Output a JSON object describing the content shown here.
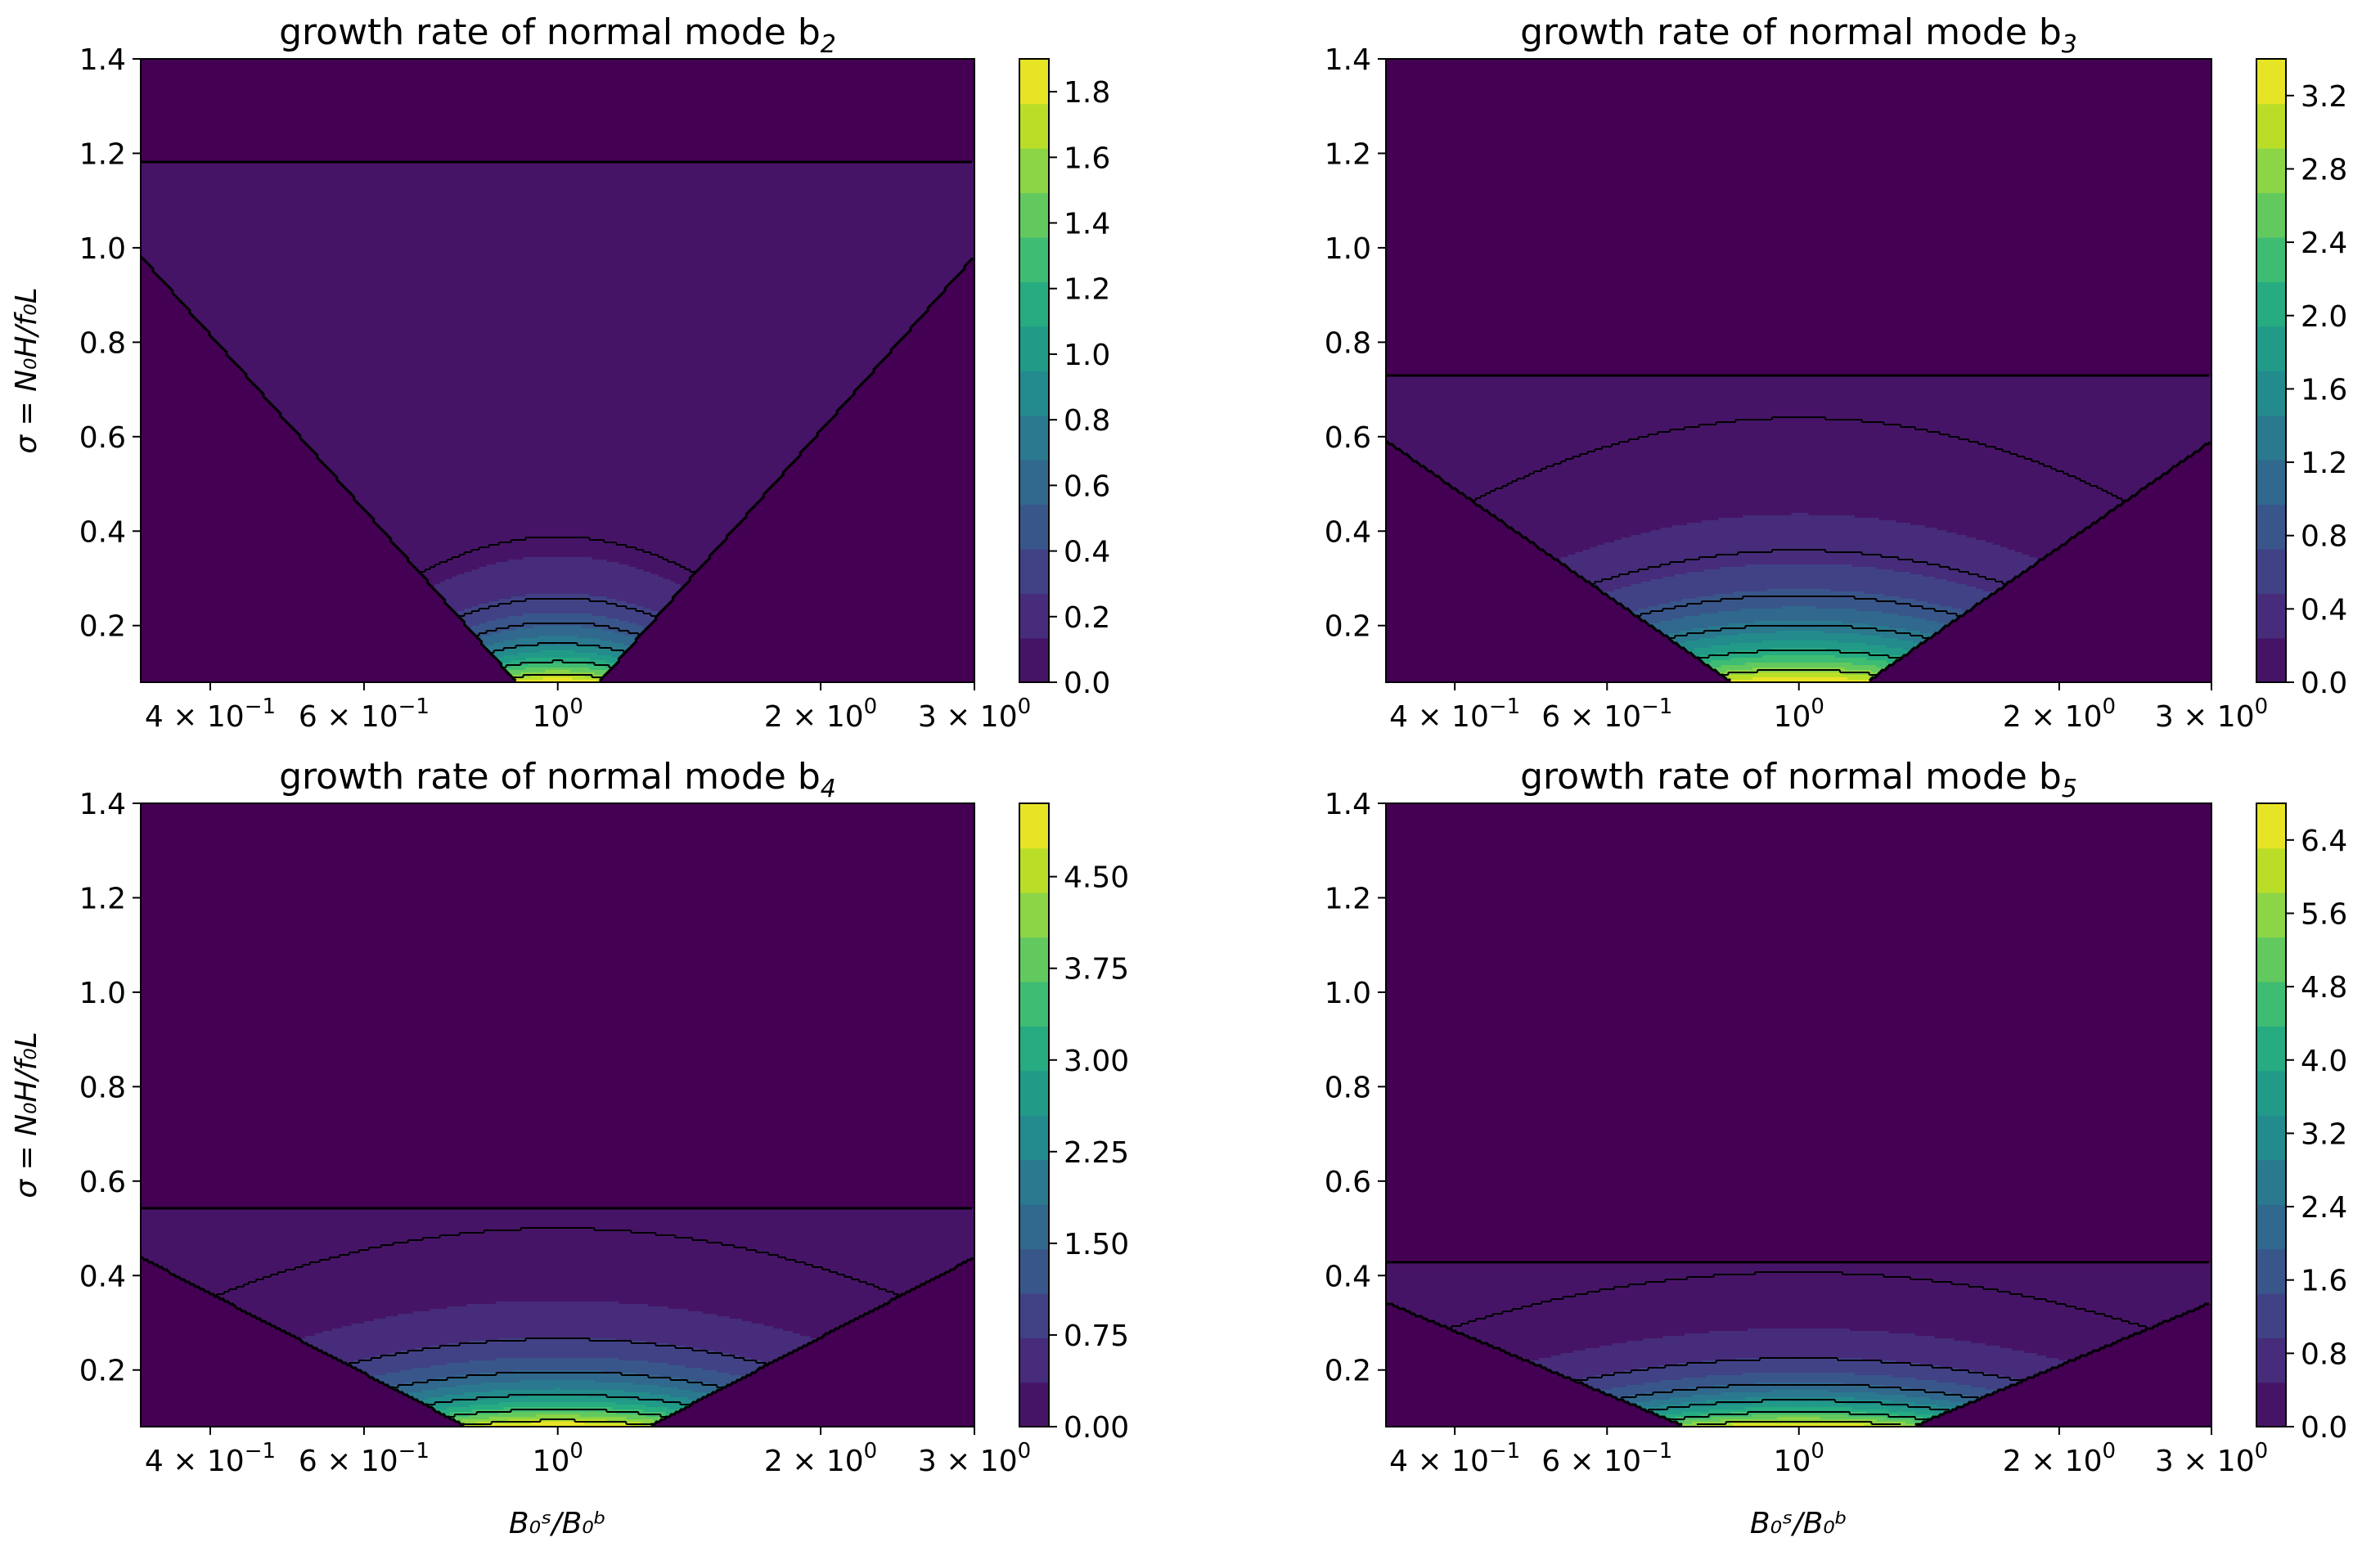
{
  "figure": {
    "xlabel": "B₀ˢ/B₀ᵇ",
    "ylabel": "σ = N₀H/f₀L"
  },
  "colors": {
    "viridis": [
      "#440154",
      "#482475",
      "#414487",
      "#355f8d",
      "#2a788e",
      "#21918c",
      "#22a884",
      "#44bf70",
      "#7ad151",
      "#bddf26",
      "#fde725"
    ],
    "contour_line": "#000000",
    "background": "#ffffff"
  },
  "chart_data": [
    {
      "type": "heatmap",
      "title": "growth rate of normal mode b",
      "mode_subscript": "2",
      "xscale": "log",
      "xlim": [
        0.333,
        3.0
      ],
      "ylim": [
        0.08,
        1.4
      ],
      "x_ticks": [
        {
          "value": 0.4,
          "label": "4 × 10",
          "exp": "−1"
        },
        {
          "value": 0.6,
          "label": "6 × 10",
          "exp": "−1"
        },
        {
          "value": 1.0,
          "label": "10",
          "exp": "0"
        },
        {
          "value": 2.0,
          "label": "2 × 10",
          "exp": "0"
        },
        {
          "value": 3.0,
          "label": "3 × 10",
          "exp": "0"
        }
      ],
      "y_ticks": [
        "0.2",
        "0.4",
        "0.6",
        "0.8",
        "1.0",
        "1.2",
        "1.4"
      ],
      "colorbar": {
        "min": 0.0,
        "max": 1.9,
        "ticks": [
          "0.0",
          "0.2",
          "0.4",
          "0.6",
          "0.8",
          "1.0",
          "1.2",
          "1.4",
          "1.6",
          "1.8"
        ]
      },
      "field": {
        "peak": 1.9,
        "x0": 1.0,
        "y0": 0.08,
        "ymax": 1.18,
        "decay_y": 0.09,
        "decay_x": 0.12,
        "cone_y": 1.05,
        "cone_floor": 0.0
      },
      "contour_levels": [
        0.1,
        0.3,
        0.5,
        0.8,
        1.2,
        1.6
      ],
      "show_xlabel": false,
      "show_ylabel": true
    },
    {
      "type": "heatmap",
      "title": "growth rate of normal mode b",
      "mode_subscript": "3",
      "xscale": "log",
      "xlim": [
        0.333,
        3.0
      ],
      "ylim": [
        0.08,
        1.4
      ],
      "x_ticks": [
        {
          "value": 0.4,
          "label": "4 × 10",
          "exp": "−1"
        },
        {
          "value": 0.6,
          "label": "6 × 10",
          "exp": "−1"
        },
        {
          "value": 1.0,
          "label": "10",
          "exp": "0"
        },
        {
          "value": 2.0,
          "label": "2 × 10",
          "exp": "0"
        },
        {
          "value": 3.0,
          "label": "3 × 10",
          "exp": "0"
        }
      ],
      "y_ticks": [
        "0.2",
        "0.4",
        "0.6",
        "0.8",
        "1.0",
        "1.2",
        "1.4"
      ],
      "colorbar": {
        "min": 0.0,
        "max": 3.4,
        "ticks": [
          "0.0",
          "0.4",
          "0.8",
          "1.2",
          "1.6",
          "2.0",
          "2.4",
          "2.8",
          "3.2"
        ]
      },
      "field": {
        "peak": 3.4,
        "x0": 1.0,
        "y0": 0.08,
        "ymax": 0.73,
        "decay_y": 0.12,
        "decay_x": 0.22,
        "cone_y": 0.64,
        "cone_floor": 0.0
      },
      "contour_levels": [
        0.1,
        0.4,
        0.8,
        1.3,
        2.0,
        2.8
      ],
      "show_xlabel": false,
      "show_ylabel": false
    },
    {
      "type": "heatmap",
      "title": "growth rate of normal mode b",
      "mode_subscript": "4",
      "xscale": "log",
      "xlim": [
        0.333,
        3.0
      ],
      "ylim": [
        0.08,
        1.4
      ],
      "x_ticks": [
        {
          "value": 0.4,
          "label": "4 × 10",
          "exp": "−1"
        },
        {
          "value": 0.6,
          "label": "6 × 10",
          "exp": "−1"
        },
        {
          "value": 1.0,
          "label": "10",
          "exp": "0"
        },
        {
          "value": 2.0,
          "label": "2 × 10",
          "exp": "0"
        },
        {
          "value": 3.0,
          "label": "3 × 10",
          "exp": "0"
        }
      ],
      "y_ticks": [
        "0.2",
        "0.4",
        "0.6",
        "0.8",
        "1.0",
        "1.2",
        "1.4"
      ],
      "colorbar": {
        "min": 0.0,
        "max": 5.1,
        "ticks": [
          "0.00",
          "0.75",
          "1.50",
          "2.25",
          "3.00",
          "3.75",
          "4.50"
        ]
      },
      "field": {
        "peak": 5.1,
        "x0": 1.0,
        "y0": 0.08,
        "ymax": 0.54,
        "decay_y": 0.09,
        "decay_x": 0.22,
        "cone_y": 0.48,
        "cone_floor": 0.0
      },
      "contour_levels": [
        0.15,
        0.75,
        1.5,
        2.5,
        3.5,
        4.5
      ],
      "show_xlabel": true,
      "show_ylabel": true
    },
    {
      "type": "heatmap",
      "title": "growth rate of normal mode b",
      "mode_subscript": "5",
      "xscale": "log",
      "xlim": [
        0.333,
        3.0
      ],
      "ylim": [
        0.08,
        1.4
      ],
      "x_ticks": [
        {
          "value": 0.4,
          "label": "4 × 10",
          "exp": "−1"
        },
        {
          "value": 0.6,
          "label": "6 × 10",
          "exp": "−1"
        },
        {
          "value": 1.0,
          "label": "10",
          "exp": "0"
        },
        {
          "value": 2.0,
          "label": "2 × 10",
          "exp": "0"
        },
        {
          "value": 3.0,
          "label": "3 × 10",
          "exp": "0"
        }
      ],
      "y_ticks": [
        "0.2",
        "0.4",
        "0.6",
        "0.8",
        "1.0",
        "1.2",
        "1.4"
      ],
      "colorbar": {
        "min": 0.0,
        "max": 6.8,
        "ticks": [
          "0.0",
          "0.8",
          "1.6",
          "2.4",
          "3.2",
          "4.0",
          "4.8",
          "5.6",
          "6.4"
        ]
      },
      "field": {
        "peak": 6.8,
        "x0": 1.0,
        "y0": 0.08,
        "ymax": 0.43,
        "decay_y": 0.07,
        "decay_x": 0.22,
        "cone_y": 0.38,
        "cone_floor": 0.0
      },
      "contour_levels": [
        0.2,
        1.0,
        2.0,
        3.2,
        4.5,
        5.8
      ],
      "show_xlabel": true,
      "show_ylabel": false
    }
  ]
}
